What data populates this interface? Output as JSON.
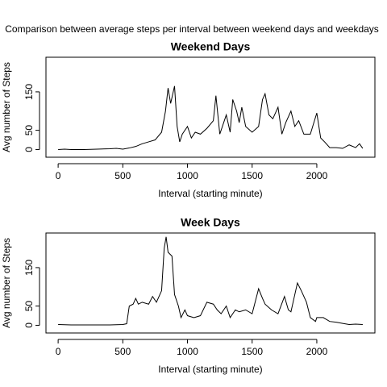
{
  "title": "Comparison between average steps per interval between weekend days and weekdays",
  "chart_data": [
    {
      "type": "line",
      "title": "Weekend Days",
      "xlabel": "Interval (starting minute)",
      "ylabel": "Avg number of Steps",
      "xlim": [
        -94.2,
        2449.2
      ],
      "ylim": [
        -20,
        240
      ],
      "xticks": [
        0,
        500,
        1000,
        1500,
        2000
      ],
      "yticks": [
        0,
        50,
        150
      ],
      "x": [
        0,
        50,
        100,
        200,
        300,
        400,
        450,
        500,
        550,
        600,
        650,
        700,
        750,
        800,
        830,
        850,
        870,
        900,
        920,
        940,
        960,
        1000,
        1030,
        1060,
        1100,
        1150,
        1200,
        1220,
        1250,
        1280,
        1300,
        1330,
        1350,
        1380,
        1400,
        1420,
        1450,
        1500,
        1550,
        1580,
        1600,
        1630,
        1660,
        1700,
        1730,
        1760,
        1800,
        1830,
        1860,
        1900,
        1950,
        2000,
        2030,
        2060,
        2100,
        2150,
        2200,
        2250,
        2300,
        2330,
        2355
      ],
      "series": [
        {
          "name": "Weekend Days",
          "color": "#000000",
          "values": [
            0,
            1,
            0,
            0,
            1,
            2,
            3,
            1,
            4,
            8,
            15,
            20,
            25,
            45,
            100,
            160,
            120,
            165,
            60,
            20,
            40,
            60,
            30,
            45,
            40,
            55,
            75,
            140,
            40,
            70,
            90,
            45,
            130,
            100,
            70,
            110,
            60,
            45,
            60,
            130,
            145,
            90,
            80,
            110,
            40,
            70,
            100,
            60,
            75,
            40,
            40,
            95,
            30,
            20,
            5,
            5,
            3,
            12,
            5,
            15,
            3
          ]
        }
      ]
    },
    {
      "type": "line",
      "title": "Week Days",
      "xlabel": "Interval (starting minute)",
      "ylabel": "Avg number of Steps",
      "xlim": [
        -94.2,
        2449.2
      ],
      "ylim": [
        -20,
        240
      ],
      "xticks": [
        0,
        500,
        1000,
        1500,
        2000
      ],
      "yticks": [
        0,
        50,
        150
      ],
      "x": [
        0,
        100,
        200,
        300,
        400,
        500,
        530,
        550,
        580,
        600,
        620,
        650,
        700,
        730,
        760,
        800,
        820,
        835,
        850,
        880,
        900,
        930,
        950,
        980,
        1000,
        1050,
        1100,
        1150,
        1200,
        1230,
        1260,
        1300,
        1330,
        1370,
        1400,
        1450,
        1500,
        1550,
        1580,
        1600,
        1650,
        1700,
        1750,
        1780,
        1800,
        1830,
        1850,
        1880,
        1920,
        1950,
        1990,
        2000,
        2050,
        2100,
        2150,
        2200,
        2250,
        2300,
        2355
      ],
      "series": [
        {
          "name": "Week Days",
          "color": "#000000",
          "values": [
            2,
            1,
            1,
            1,
            1,
            2,
            4,
            50,
            55,
            70,
            55,
            60,
            55,
            75,
            60,
            90,
            200,
            230,
            190,
            180,
            80,
            50,
            20,
            40,
            25,
            20,
            25,
            60,
            55,
            40,
            30,
            50,
            20,
            40,
            35,
            40,
            30,
            95,
            70,
            55,
            40,
            30,
            75,
            40,
            35,
            80,
            110,
            90,
            60,
            20,
            10,
            20,
            20,
            10,
            8,
            5,
            2,
            3,
            2
          ]
        }
      ]
    }
  ]
}
